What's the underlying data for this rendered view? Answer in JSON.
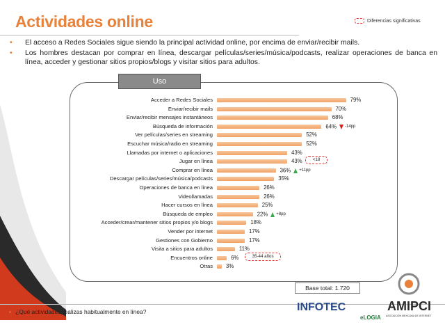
{
  "header": {
    "title": "Actividades online",
    "legend_note": "Diferencias significativas"
  },
  "bullets": [
    "El acceso a Redes Sociales sigue siendo la principal actividad online, por encima de enviar/recibir mails.",
    "Los hombres destacan por comprar en línea, descargar películas/series/música/podcasts, realizar operaciones de banca en línea, acceder y gestionar sitios propios/blogs y visitar sitios para adultos."
  ],
  "panel": {
    "tab_label": "Uso"
  },
  "chart_data": {
    "type": "bar",
    "orientation": "horizontal",
    "unit": "%",
    "categories": [
      "Acceder a Redes Sociales",
      "Enviar/recibir mails",
      "Enviar/recibir mensajes instantáneos",
      "Búsqueda de información",
      "Ver películas/series en streaming",
      "Escuchar música/radio en streaming",
      "Llamadas por internet o aplicaciones",
      "Jugar en línea",
      "Comprar en línea",
      "Descargar películas/series/música/podcasts",
      "Operaciones de banca en línea",
      "Videollamadas",
      "Hacer cursos en línea",
      "Búsqueda de empleo",
      "Acceder/crear/mantener sitios propios y/o blogs",
      "Vender por internet",
      "Gestiones con Gobierno",
      "Visita a sitios para adultos",
      "Encuentros online",
      "Otras"
    ],
    "values": [
      79,
      70,
      68,
      64,
      52,
      52,
      43,
      43,
      36,
      35,
      26,
      26,
      25,
      22,
      18,
      17,
      17,
      11,
      6,
      3
    ],
    "labels": [
      "79%",
      "70%",
      "68%",
      "64%",
      "52%",
      "52%",
      "43%",
      "43%",
      "36%",
      "35%",
      "26%",
      "26%",
      "25%",
      "22%",
      "18%",
      "17%",
      "17%",
      "11%",
      "6%",
      "3%"
    ],
    "changes": [
      {
        "index": 3,
        "direction": "down",
        "text": "-14pp",
        "color": "#d32020"
      },
      {
        "index": 8,
        "direction": "up",
        "text": "+11pp",
        "color": "#3aa84c"
      },
      {
        "index": 13,
        "direction": "up",
        "text": "+8pp",
        "color": "#3aa84c"
      }
    ],
    "segment_notes": [
      {
        "index": 7,
        "text": "<18"
      },
      {
        "index": 18,
        "text": "35-44 años"
      }
    ],
    "bar_color": "#f1a266",
    "xlim": [
      0,
      100
    ]
  },
  "base_total": "Base total: 1.720",
  "footer": {
    "question": "¿Qué actividades realizas habitualmente en línea?",
    "logos": {
      "infotec": "INFOTEC",
      "elogia": "eLOGIA",
      "amipci": "AMIPCI",
      "amipci_sub": "ASOCIACIÓN MEXICANA DE INTERNET"
    }
  },
  "colors": {
    "accent": "#e8823a",
    "down": "#d32020",
    "up": "#3aa84c"
  }
}
